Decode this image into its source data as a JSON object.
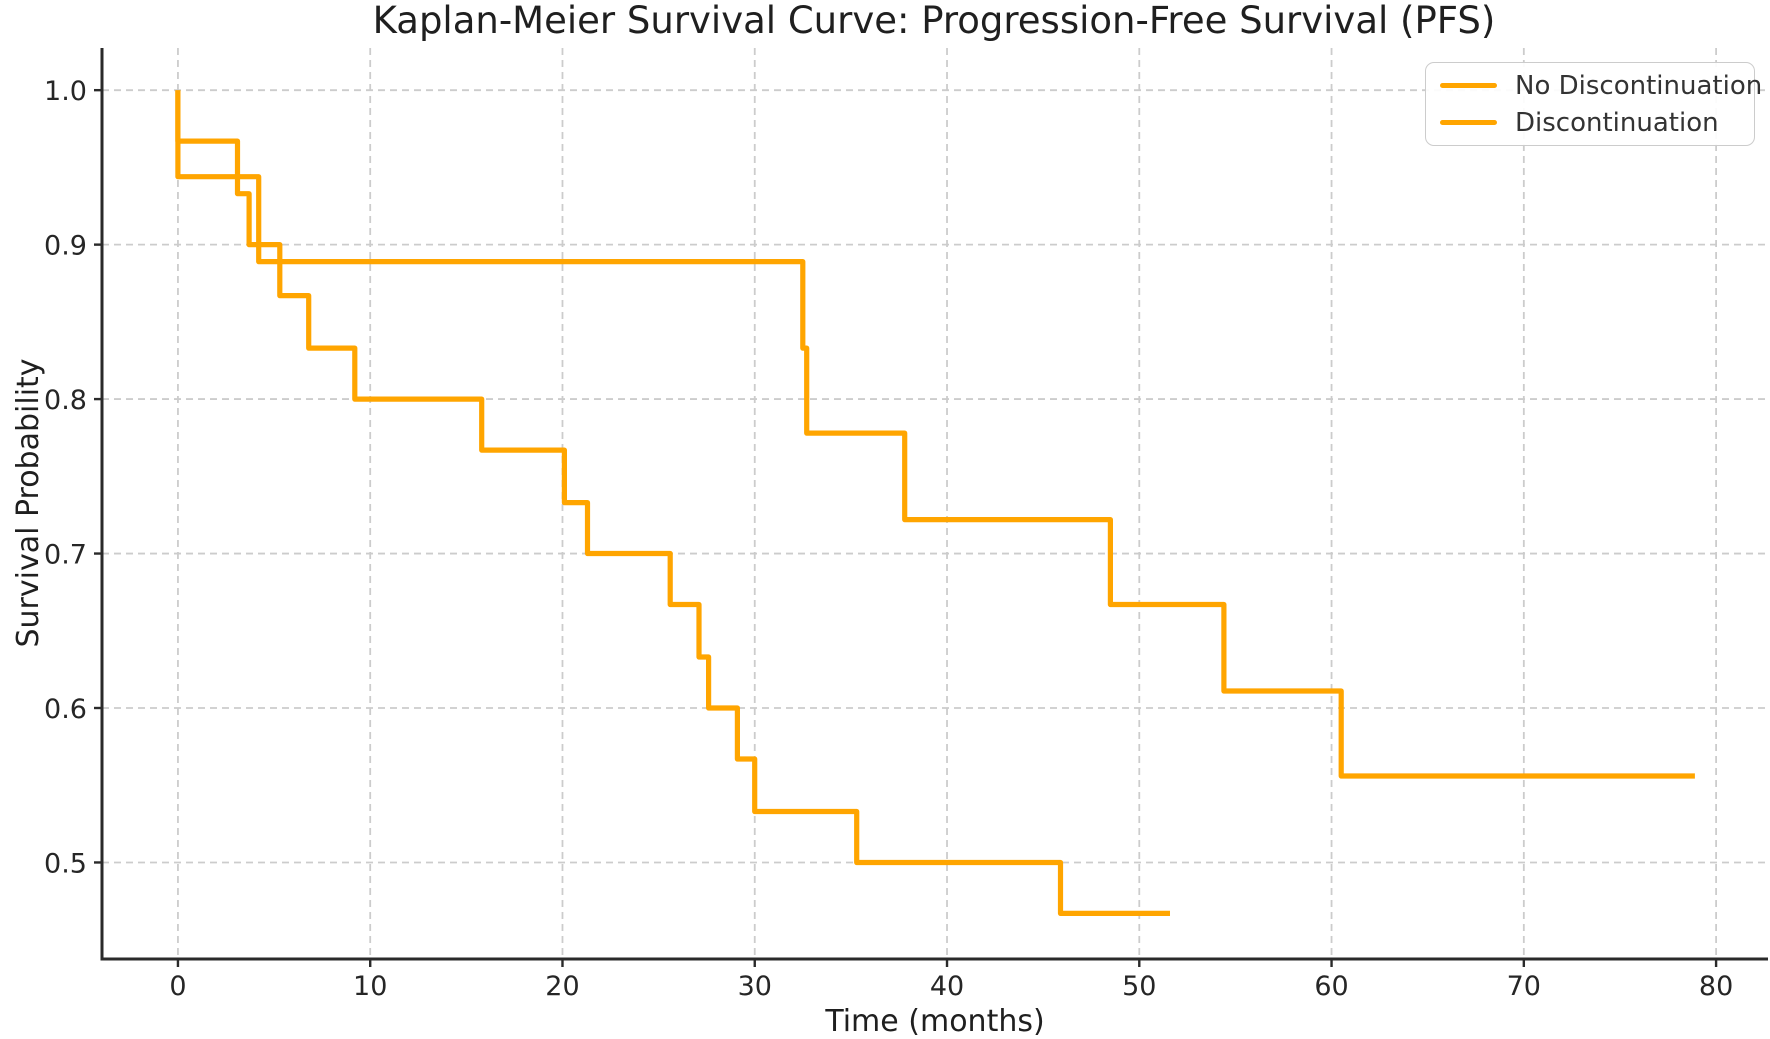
{
  "title": "Kaplan-Meier Survival Curve: Progression-Free Survival (PFS)",
  "axes": {
    "xlabel": "Time (months)",
    "ylabel": "Survival Probability"
  },
  "legend": {
    "position": "upper right",
    "items": [
      {
        "label": "No Discontinuation",
        "color": "#FFA500"
      },
      {
        "label": "Discontinuation",
        "color": "#FFA500"
      }
    ]
  },
  "colors": {
    "curve_orange": "#FFA500",
    "grid_gray": "#cccccc",
    "text_dark": "#1f1f1f"
  },
  "chart_data": {
    "type": "line",
    "subtype": "kaplan-meier-step",
    "title": "Kaplan-Meier Survival Curve: Progression-Free Survival (PFS)",
    "xlabel": "Time (months)",
    "ylabel": "Survival Probability",
    "xlim": [
      -3.95,
      82.7
    ],
    "ylim": [
      0.4375,
      1.0273
    ],
    "grid": true,
    "x_ticks": [
      {
        "value": 0,
        "label": "0"
      },
      {
        "value": 10,
        "label": "10"
      },
      {
        "value": 20,
        "label": "20"
      },
      {
        "value": 30,
        "label": "30"
      },
      {
        "value": 40,
        "label": "40"
      },
      {
        "value": 50,
        "label": "50"
      },
      {
        "value": 60,
        "label": "60"
      },
      {
        "value": 70,
        "label": "70"
      },
      {
        "value": 80,
        "label": "80"
      }
    ],
    "y_ticks": [
      {
        "value": 0.5,
        "label": "0.5"
      },
      {
        "value": 0.6,
        "label": "0.6"
      },
      {
        "value": 0.7,
        "label": "0.7"
      },
      {
        "value": 0.8,
        "label": "0.8"
      },
      {
        "value": 0.9,
        "label": "0.9"
      },
      {
        "value": 1.0,
        "label": "1.0"
      }
    ],
    "series": [
      {
        "name": "No Discontinuation",
        "color": "#FFA500",
        "step_points_time_survival": [
          [
            0,
            1.0
          ],
          [
            0,
            0.967
          ],
          [
            3.1,
            0.933
          ],
          [
            3.7,
            0.9
          ],
          [
            5.3,
            0.867
          ],
          [
            6.8,
            0.833
          ],
          [
            9.2,
            0.8
          ],
          [
            15.8,
            0.767
          ],
          [
            20.1,
            0.733
          ],
          [
            21.3,
            0.7
          ],
          [
            25.6,
            0.667
          ],
          [
            27.1,
            0.633
          ],
          [
            27.6,
            0.6
          ],
          [
            29.1,
            0.567
          ],
          [
            30.0,
            0.533
          ],
          [
            35.3,
            0.5
          ],
          [
            45.9,
            0.467
          ],
          [
            51.6,
            0.467
          ]
        ]
      },
      {
        "name": "Discontinuation",
        "color": "#FFA500",
        "step_points_time_survival": [
          [
            0,
            1.0
          ],
          [
            0,
            0.944
          ],
          [
            4.2,
            0.889
          ],
          [
            32.5,
            0.833
          ],
          [
            32.7,
            0.778
          ],
          [
            37.8,
            0.722
          ],
          [
            48.5,
            0.667
          ],
          [
            54.4,
            0.611
          ],
          [
            60.5,
            0.556
          ],
          [
            78.9,
            0.556
          ]
        ]
      }
    ]
  }
}
